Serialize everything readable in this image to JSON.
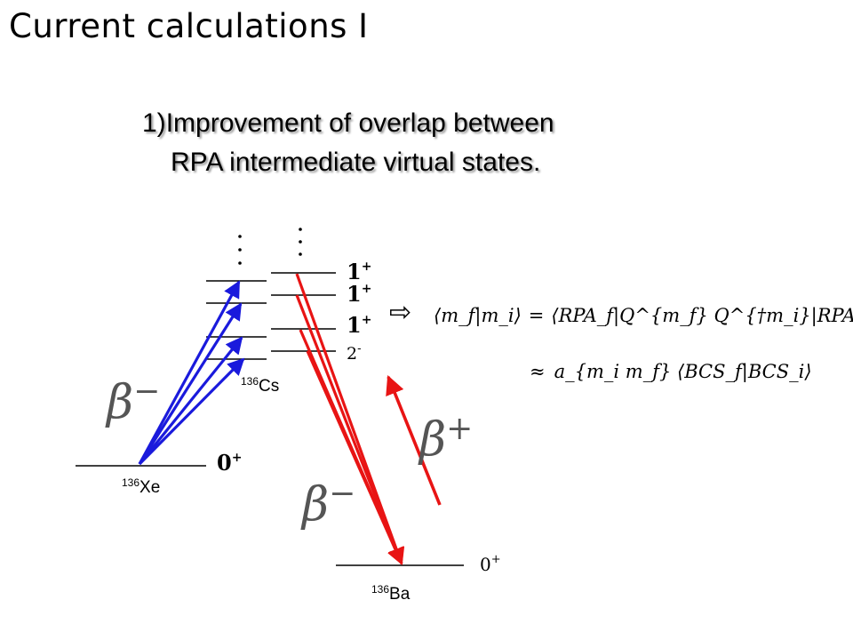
{
  "slide": {
    "title": "Current calculations I",
    "point_number": "1)",
    "point_line1": "Improvement of overlap between",
    "point_line2": "RPA intermediate virtual states."
  },
  "nuclei": {
    "xe": {
      "mass": "136",
      "symbol": "Xe"
    },
    "cs": {
      "mass": "136",
      "symbol": "Cs"
    },
    "ba": {
      "mass": "136",
      "symbol": "Ba"
    }
  },
  "levels": {
    "xe_ground": {
      "spin": "0",
      "parity": "+"
    },
    "cs_states": [
      {
        "spin": "1",
        "parity": "+"
      },
      {
        "spin": "1",
        "parity": "+"
      },
      {
        "spin": "1",
        "parity": "+"
      },
      {
        "spin": "2",
        "parity": "-"
      }
    ],
    "ba_ground": {
      "spin": "0",
      "parity": "+"
    }
  },
  "transitions": {
    "beta_minus_symbol": "β",
    "beta_minus_sign": "−",
    "beta_plus_symbol": "β",
    "beta_plus_sign": "+"
  },
  "colors": {
    "beta_minus_arrow": "#1a1adc",
    "beta_plus_arrow": "#e81414",
    "level_line": "#000000",
    "symbol_gray": "#555555"
  },
  "equation": {
    "implies": "⇨",
    "line1_lhs": "⟨m_f|m_i⟩",
    "line1_eq": "=",
    "line1_rhs": "⟨RPA_f|Q^{m_f} Q^{†m_i}|RPA_i⟩",
    "line2_approx": "≈",
    "line2_rhs": "a_{m_i m_f} ⟨BCS_f|BCS_i⟩"
  }
}
